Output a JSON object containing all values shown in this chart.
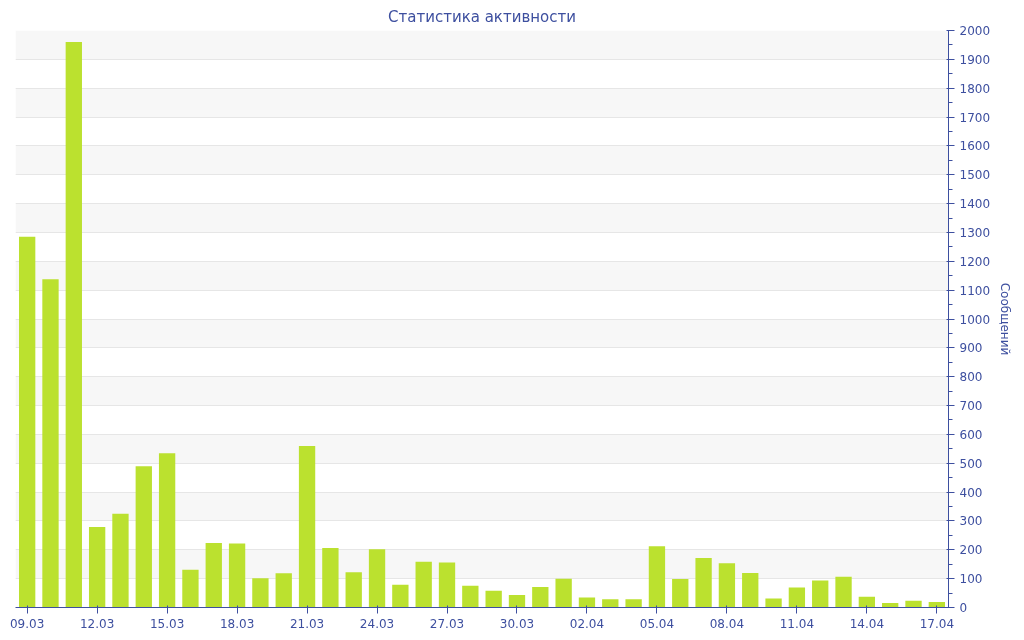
{
  "chart_data": {
    "type": "bar",
    "title": "Статистика активности",
    "ylabel": "Сообщений",
    "categories": [
      "09.03",
      null,
      null,
      "12.03",
      null,
      null,
      "15.03",
      null,
      null,
      "18.03",
      null,
      null,
      "21.03",
      null,
      null,
      "24.03",
      null,
      null,
      "27.03",
      null,
      null,
      "30.03",
      null,
      null,
      "02.04",
      null,
      null,
      "05.04",
      null,
      null,
      "08.04",
      null,
      null,
      "11.04",
      null,
      null,
      "14.04",
      null,
      null,
      "17.04"
    ],
    "values": [
      1285,
      1138,
      1960,
      279,
      325,
      490,
      535,
      131,
      224,
      222,
      101,
      119,
      560,
      206,
      122,
      202,
      79,
      159,
      156,
      75,
      58,
      43,
      71,
      100,
      35,
      29,
      29,
      212,
      99,
      172,
      153,
      120,
      31,
      69,
      94,
      107,
      37,
      16,
      23,
      19
    ],
    "color": "#bbe12f",
    "ylim": [
      0,
      2000
    ],
    "yticks": [
      0,
      100,
      200,
      300,
      400,
      500,
      600,
      700,
      800,
      900,
      1000,
      1100,
      1200,
      1300,
      1400,
      1500,
      1600,
      1700,
      1800,
      1900,
      2000
    ],
    "grid": "y"
  }
}
